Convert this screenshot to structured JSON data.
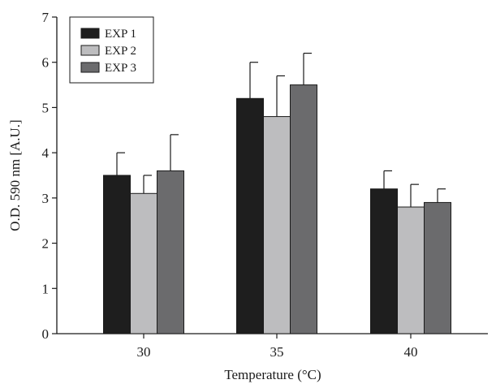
{
  "chart_data": {
    "type": "bar",
    "title": "",
    "xlabel": "Temperature (°C)",
    "ylabel": "O.D. 590 nm [A.U.]",
    "categories": [
      "30",
      "35",
      "40"
    ],
    "ylim": [
      0,
      7
    ],
    "yticks": [
      "0",
      "1",
      "2",
      "3",
      "4",
      "5",
      "6",
      "7"
    ],
    "grid": false,
    "legend_position": "top-left",
    "series": [
      {
        "name": "EXP 1",
        "color": "#1e1e1e",
        "values": [
          3.5,
          5.2,
          3.2
        ],
        "errors": [
          0.5,
          0.8,
          0.4
        ]
      },
      {
        "name": "EXP 2",
        "color": "#bdbdbf",
        "values": [
          3.1,
          4.8,
          2.8
        ],
        "errors": [
          0.4,
          0.9,
          0.5
        ]
      },
      {
        "name": "EXP 3",
        "color": "#6b6b6d",
        "values": [
          3.6,
          5.5,
          2.9
        ],
        "errors": [
          0.8,
          0.7,
          0.3
        ]
      }
    ]
  }
}
